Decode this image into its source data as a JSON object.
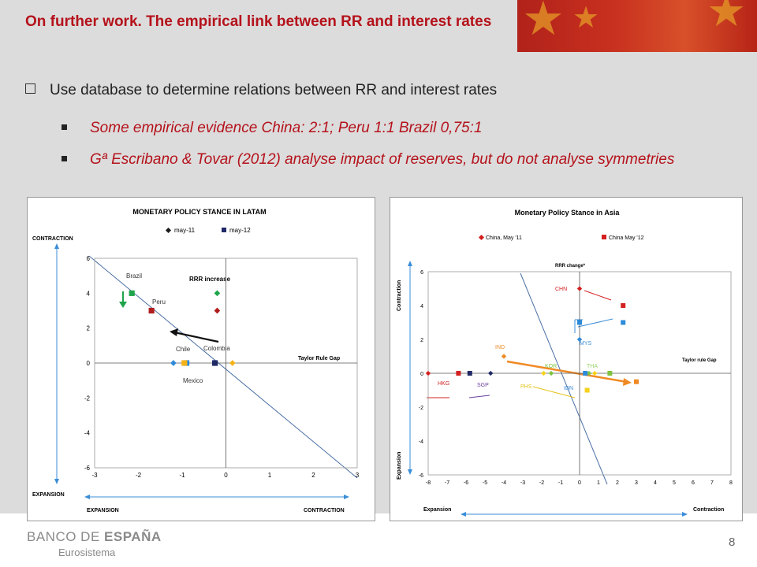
{
  "title": "On further work. The empirical link between RR and interest rates",
  "bullet_main": "Use database to determine relations between RR and interest rates",
  "sub_bullets": [
    "Some empirical evidence China: 2:1; Peru 1:1 Brazil 0,75:1",
    "Gª Escribano & Tovar (2012) analyse impact of reserves, but do not analyse symmetries"
  ],
  "footer": {
    "logo_a": "BANCO DE ",
    "logo_b": "ESPAÑA",
    "sub": "Eurosistema",
    "page": "8"
  },
  "chart_data": [
    {
      "type": "scatter",
      "title": "MONETARY POLICY STANCE IN LATAM",
      "legend": [
        "may-11",
        "may-12"
      ],
      "y_top_label": "CONTRACTION",
      "y_bottom_label": "EXPANSION",
      "x_left_label": "EXPANSION",
      "x_right_label": "CONTRACTION",
      "y_axis_title": "RRR increase",
      "x_axis_title": "Taylor Rule Gap",
      "xlim": [
        -3,
        3
      ],
      "ylim": [
        -6,
        6
      ],
      "xticks": [
        "-3",
        "-2",
        "-1",
        "0",
        "1",
        "2",
        "3"
      ],
      "yticks": [
        "6",
        "4",
        "2",
        "0",
        "-2",
        "-4",
        "-6"
      ],
      "country_labels": [
        "Brazil",
        "Peru",
        "Chile",
        "Colombia",
        "Mexico"
      ],
      "series": [
        {
          "name": "may-11",
          "color": "#1b1b1b",
          "points": [
            {
              "x": -0.2,
              "y": 4,
              "color": "#1fa44b"
            },
            {
              "x": -0.2,
              "y": 3,
              "color": "#b01d1d"
            },
            {
              "x": -1.2,
              "y": 0,
              "color": "#2e8bd9"
            },
            {
              "x": 0.15,
              "y": 0,
              "color": "#f5b21b"
            },
            {
              "x": -0.9,
              "y": 0,
              "color": "#2e8bd9"
            }
          ]
        },
        {
          "name": "may-12",
          "color": "#1f2a66",
          "points": [
            {
              "x": -2.15,
              "y": 4,
              "color": "#1fa44b"
            },
            {
              "x": -1.7,
              "y": 3,
              "color": "#b01d1d"
            },
            {
              "x": -0.9,
              "y": 0,
              "color": "#2e8bd9"
            },
            {
              "x": -0.25,
              "y": 0,
              "color": "#1f2a66"
            },
            {
              "x": -0.95,
              "y": 0,
              "color": "#f5b21b"
            }
          ]
        }
      ]
    },
    {
      "type": "scatter",
      "title": "Monetary Policy Stance in Asia",
      "legend": [
        "China, May '11",
        "China May '12"
      ],
      "y_axis_title": "RRR change*",
      "x_axis_title": "Taylor rule Gap",
      "y_top_label": "Contraction",
      "y_bottom_label": "Expansion",
      "x_left_label": "Expansion",
      "x_right_label": "Contraction",
      "xlim": [
        -8,
        8
      ],
      "ylim": [
        -6,
        6
      ],
      "xticks": [
        "-8",
        "-7",
        "-6",
        "-5",
        "-4",
        "-3",
        "-2",
        "-1",
        "0",
        "1",
        "2",
        "3",
        "4",
        "5",
        "6",
        "7",
        "8"
      ],
      "yticks": [
        "6",
        "4",
        "2",
        "0",
        "-2",
        "-4",
        "-6"
      ],
      "country_labels": [
        "CHN",
        "MYS",
        "IND",
        "KOR",
        "THA",
        "HKG",
        "SGP",
        "PHS",
        "IDN"
      ],
      "series": [
        {
          "name": "China, May '11",
          "color": "#d42020",
          "points": [
            {
              "x": 0,
              "y": 5,
              "color": "#d42020"
            },
            {
              "x": 0,
              "y": 2,
              "color": "#2e8bd9"
            },
            {
              "x": -4,
              "y": 1,
              "color": "#f08a24"
            },
            {
              "x": -1.5,
              "y": 0,
              "color": "#7fc241"
            },
            {
              "x": 0.8,
              "y": 0,
              "color": "#f5d21b"
            },
            {
              "x": -8,
              "y": 0,
              "color": "#d42020"
            },
            {
              "x": -4.7,
              "y": 0,
              "color": "#1f2a66"
            },
            {
              "x": -1.9,
              "y": 0,
              "color": "#f5d21b"
            },
            {
              "x": 0.5,
              "y": 0,
              "color": "#7fc241"
            }
          ]
        },
        {
          "name": "China May '12",
          "color": "#d42020",
          "points": [
            {
              "x": 2.3,
              "y": 4,
              "color": "#d42020"
            },
            {
              "x": 2.3,
              "y": 3,
              "color": "#2e8bd9"
            },
            {
              "x": 0,
              "y": 3,
              "color": "#2e8bd9"
            },
            {
              "x": 3,
              "y": -0.5,
              "color": "#f08a24"
            },
            {
              "x": 1.6,
              "y": 0,
              "color": "#7fc241"
            },
            {
              "x": -6.4,
              "y": 0,
              "color": "#d42020"
            },
            {
              "x": -5.8,
              "y": 0,
              "color": "#1f2a66"
            },
            {
              "x": 0.4,
              "y": -1,
              "color": "#f5d21b"
            },
            {
              "x": 0.3,
              "y": 0,
              "color": "#2e8bd9"
            }
          ]
        }
      ]
    }
  ]
}
